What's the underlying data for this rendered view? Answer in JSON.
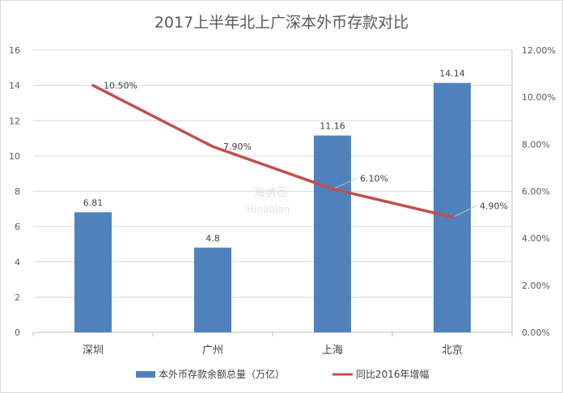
{
  "chart_data": {
    "type": "bar",
    "title": "2017上半年北上广深本外币存款对比",
    "categories": [
      "深圳",
      "广州",
      "上海",
      "北京"
    ],
    "series": [
      {
        "name": "本外币存款余额总量（万亿）",
        "type": "bar",
        "axis": "left",
        "values": [
          6.81,
          4.8,
          11.16,
          14.14
        ],
        "labels": [
          "6.81",
          "4.8",
          "11.16",
          "14.14"
        ],
        "color": "#4f81bd"
      },
      {
        "name": "同比2016年增幅",
        "type": "line",
        "axis": "right",
        "values": [
          10.5,
          7.9,
          6.1,
          4.9
        ],
        "labels": [
          "10.50%",
          "7.90%",
          "6.10%",
          "4.90%"
        ],
        "color": "#c0504d"
      }
    ],
    "y_left": {
      "min": 0,
      "max": 16,
      "step": 2,
      "ticks": [
        "0",
        "2",
        "4",
        "6",
        "8",
        "10",
        "12",
        "14",
        "16"
      ]
    },
    "y_right": {
      "min": 0,
      "max": 12,
      "step": 2,
      "ticks": [
        "0.00%",
        "2.00%",
        "4.00%",
        "6.00%",
        "8.00%",
        "10.00%",
        "12.00%"
      ]
    },
    "grid": true,
    "legend_position": "bottom",
    "watermark": [
      "海纳百",
      "Hinablan"
    ]
  }
}
